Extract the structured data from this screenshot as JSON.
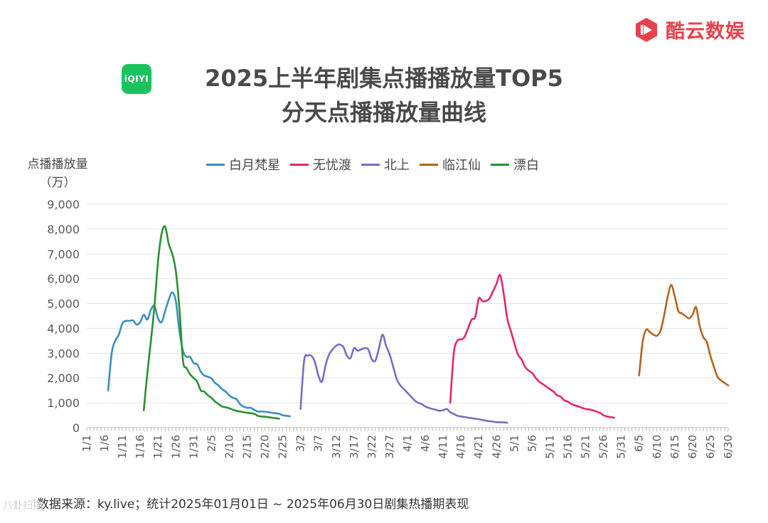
{
  "brand": {
    "name": "酷云数娱",
    "color": "#e8404c"
  },
  "app_logo": {
    "text": "iQIYI",
    "color": "#19c45f"
  },
  "title_line1": "2025上半年剧集点播播放量TOP5",
  "title_line2": "分天点播播放量曲线",
  "source": "数据来源：ky.live；统计2025年01月01日 ~ 2025年06月30日剧集热播期表现",
  "watermark": "八卦扫描",
  "chart_data": {
    "type": "line",
    "ylabel_line1": "点播播放量",
    "ylabel_line2": "（万）",
    "ylim": [
      0,
      9000
    ],
    "yticks": [
      0,
      1000,
      2000,
      3000,
      4000,
      5000,
      6000,
      7000,
      8000,
      9000
    ],
    "ytick_labels": [
      "0",
      "1,000",
      "2,000",
      "3,000",
      "4,000",
      "5,000",
      "6,000",
      "7,000",
      "8,000",
      "9,000"
    ],
    "x_start": "2025-01-01",
    "x_end": "2025-06-30",
    "xtick_labels": [
      "1/1",
      "1/6",
      "1/11",
      "1/16",
      "1/21",
      "1/26",
      "1/31",
      "2/5",
      "2/10",
      "2/15",
      "2/20",
      "2/25",
      "3/2",
      "3/7",
      "3/12",
      "3/17",
      "3/22",
      "3/27",
      "4/1",
      "4/6",
      "4/11",
      "4/16",
      "4/21",
      "4/26",
      "5/1",
      "5/6",
      "5/11",
      "5/16",
      "5/21",
      "5/26",
      "5/31",
      "6/5",
      "6/10",
      "6/15",
      "6/20",
      "6/25",
      "6/30"
    ],
    "grid": true,
    "legend_position": "top",
    "series": [
      {
        "name": "白月梵星",
        "color": "#3a8fbe",
        "x": [
          "2025-01-07",
          "2025-01-08",
          "2025-01-09",
          "2025-01-10",
          "2025-01-11",
          "2025-01-12",
          "2025-01-13",
          "2025-01-14",
          "2025-01-15",
          "2025-01-16",
          "2025-01-17",
          "2025-01-18",
          "2025-01-19",
          "2025-01-20",
          "2025-01-21",
          "2025-01-22",
          "2025-01-23",
          "2025-01-24",
          "2025-01-25",
          "2025-01-26",
          "2025-01-27",
          "2025-01-28",
          "2025-01-29",
          "2025-01-30",
          "2025-01-31",
          "2025-02-01",
          "2025-02-02",
          "2025-02-03",
          "2025-02-04",
          "2025-02-05",
          "2025-02-06",
          "2025-02-07",
          "2025-02-08",
          "2025-02-09",
          "2025-02-10",
          "2025-02-11",
          "2025-02-12",
          "2025-02-13",
          "2025-02-14",
          "2025-02-15",
          "2025-02-16",
          "2025-02-17",
          "2025-02-18",
          "2025-02-19",
          "2025-02-20",
          "2025-02-21",
          "2025-02-22",
          "2025-02-23",
          "2025-02-24",
          "2025-02-25",
          "2025-02-26",
          "2025-02-27"
        ],
        "y": [
          1500,
          3000,
          3500,
          3750,
          4200,
          4300,
          4300,
          4320,
          4150,
          4250,
          4550,
          4350,
          4750,
          4900,
          4400,
          4250,
          4700,
          5150,
          5450,
          5100,
          3900,
          3100,
          2850,
          2850,
          2600,
          2550,
          2250,
          2100,
          2050,
          1980,
          1800,
          1700,
          1550,
          1450,
          1300,
          1200,
          1150,
          950,
          850,
          800,
          800,
          720,
          650,
          650,
          640,
          620,
          600,
          580,
          560,
          500,
          480,
          460
        ]
      },
      {
        "name": "无忧渡",
        "color": "#e6246e",
        "x": [
          "2025-04-13",
          "2025-04-14",
          "2025-04-15",
          "2025-04-16",
          "2025-04-17",
          "2025-04-18",
          "2025-04-19",
          "2025-04-20",
          "2025-04-21",
          "2025-04-22",
          "2025-04-23",
          "2025-04-24",
          "2025-04-25",
          "2025-04-26",
          "2025-04-27",
          "2025-04-28",
          "2025-04-29",
          "2025-04-30",
          "2025-05-01",
          "2025-05-02",
          "2025-05-03",
          "2025-05-04",
          "2025-05-05",
          "2025-05-06",
          "2025-05-07",
          "2025-05-08",
          "2025-05-09",
          "2025-05-10",
          "2025-05-11",
          "2025-05-12",
          "2025-05-13",
          "2025-05-14",
          "2025-05-15",
          "2025-05-16",
          "2025-05-17",
          "2025-05-18",
          "2025-05-19",
          "2025-05-20",
          "2025-05-21",
          "2025-05-22",
          "2025-05-23",
          "2025-05-24",
          "2025-05-25",
          "2025-05-26",
          "2025-05-27",
          "2025-05-28",
          "2025-05-29"
        ],
        "y": [
          1000,
          3000,
          3500,
          3550,
          3650,
          4000,
          4350,
          4450,
          5200,
          5100,
          5100,
          5200,
          5500,
          5800,
          6150,
          5400,
          4400,
          3900,
          3400,
          2950,
          2750,
          2450,
          2300,
          2200,
          2000,
          1850,
          1750,
          1650,
          1550,
          1450,
          1300,
          1250,
          1100,
          1050,
          950,
          900,
          850,
          800,
          750,
          730,
          700,
          650,
          600,
          500,
          450,
          420,
          400
        ]
      },
      {
        "name": "北上",
        "color": "#7b6cc4",
        "x": [
          "2025-03-02",
          "2025-03-03",
          "2025-03-04",
          "2025-03-05",
          "2025-03-06",
          "2025-03-07",
          "2025-03-08",
          "2025-03-09",
          "2025-03-10",
          "2025-03-11",
          "2025-03-12",
          "2025-03-13",
          "2025-03-14",
          "2025-03-15",
          "2025-03-16",
          "2025-03-17",
          "2025-03-18",
          "2025-03-19",
          "2025-03-20",
          "2025-03-21",
          "2025-03-22",
          "2025-03-23",
          "2025-03-24",
          "2025-03-25",
          "2025-03-26",
          "2025-03-27",
          "2025-03-28",
          "2025-03-29",
          "2025-03-30",
          "2025-03-31",
          "2025-04-01",
          "2025-04-02",
          "2025-04-03",
          "2025-04-04",
          "2025-04-05",
          "2025-04-06",
          "2025-04-07",
          "2025-04-08",
          "2025-04-09",
          "2025-04-10",
          "2025-04-11",
          "2025-04-12",
          "2025-04-13",
          "2025-04-14",
          "2025-04-15",
          "2025-04-16",
          "2025-04-17",
          "2025-04-18",
          "2025-04-19",
          "2025-04-20",
          "2025-04-21",
          "2025-04-22",
          "2025-04-23",
          "2025-04-24",
          "2025-04-25",
          "2025-04-26",
          "2025-04-27",
          "2025-04-28",
          "2025-04-29"
        ],
        "y": [
          750,
          2700,
          2900,
          2900,
          2650,
          2100,
          1850,
          2500,
          2950,
          3150,
          3300,
          3350,
          3250,
          2900,
          2800,
          3200,
          3100,
          3150,
          3200,
          3150,
          2750,
          2700,
          3200,
          3750,
          3300,
          2950,
          2450,
          1950,
          1700,
          1550,
          1400,
          1250,
          1100,
          1000,
          950,
          850,
          800,
          750,
          720,
          680,
          700,
          750,
          620,
          550,
          480,
          450,
          430,
          400,
          380,
          360,
          340,
          310,
          280,
          260,
          240,
          220,
          220,
          210,
          200
        ]
      },
      {
        "name": "临江仙",
        "color": "#b8621b",
        "x": [
          "2025-06-05",
          "2025-06-06",
          "2025-06-07",
          "2025-06-08",
          "2025-06-09",
          "2025-06-10",
          "2025-06-11",
          "2025-06-12",
          "2025-06-13",
          "2025-06-14",
          "2025-06-15",
          "2025-06-16",
          "2025-06-17",
          "2025-06-18",
          "2025-06-19",
          "2025-06-20",
          "2025-06-21",
          "2025-06-22",
          "2025-06-23",
          "2025-06-24",
          "2025-06-25",
          "2025-06-26",
          "2025-06-27",
          "2025-06-28",
          "2025-06-29",
          "2025-06-30"
        ],
        "y": [
          2100,
          3450,
          3950,
          3850,
          3750,
          3700,
          3900,
          4500,
          5250,
          5750,
          5300,
          4700,
          4600,
          4500,
          4400,
          4550,
          4850,
          4100,
          3650,
          3450,
          2900,
          2450,
          2050,
          1900,
          1800,
          1700
        ]
      },
      {
        "name": "漂白",
        "color": "#27922f",
        "x": [
          "2025-01-17",
          "2025-01-18",
          "2025-01-19",
          "2025-01-20",
          "2025-01-21",
          "2025-01-22",
          "2025-01-23",
          "2025-01-24",
          "2025-01-25",
          "2025-01-26",
          "2025-01-27",
          "2025-01-28",
          "2025-01-29",
          "2025-01-30",
          "2025-01-31",
          "2025-02-01",
          "2025-02-02",
          "2025-02-03",
          "2025-02-04",
          "2025-02-05",
          "2025-02-06",
          "2025-02-07",
          "2025-02-08",
          "2025-02-09",
          "2025-02-10",
          "2025-02-11",
          "2025-02-12",
          "2025-02-13",
          "2025-02-14",
          "2025-02-15",
          "2025-02-16",
          "2025-02-17",
          "2025-02-18",
          "2025-02-19",
          "2025-02-20",
          "2025-02-21",
          "2025-02-22",
          "2025-02-23",
          "2025-02-24"
        ],
        "y": [
          700,
          2200,
          3500,
          4900,
          6700,
          7800,
          8100,
          7400,
          7000,
          6300,
          4800,
          2700,
          2400,
          2150,
          2000,
          1850,
          1500,
          1450,
          1300,
          1200,
          1050,
          950,
          850,
          820,
          780,
          720,
          680,
          650,
          620,
          600,
          580,
          560,
          480,
          450,
          440,
          420,
          400,
          380,
          360
        ]
      }
    ]
  }
}
